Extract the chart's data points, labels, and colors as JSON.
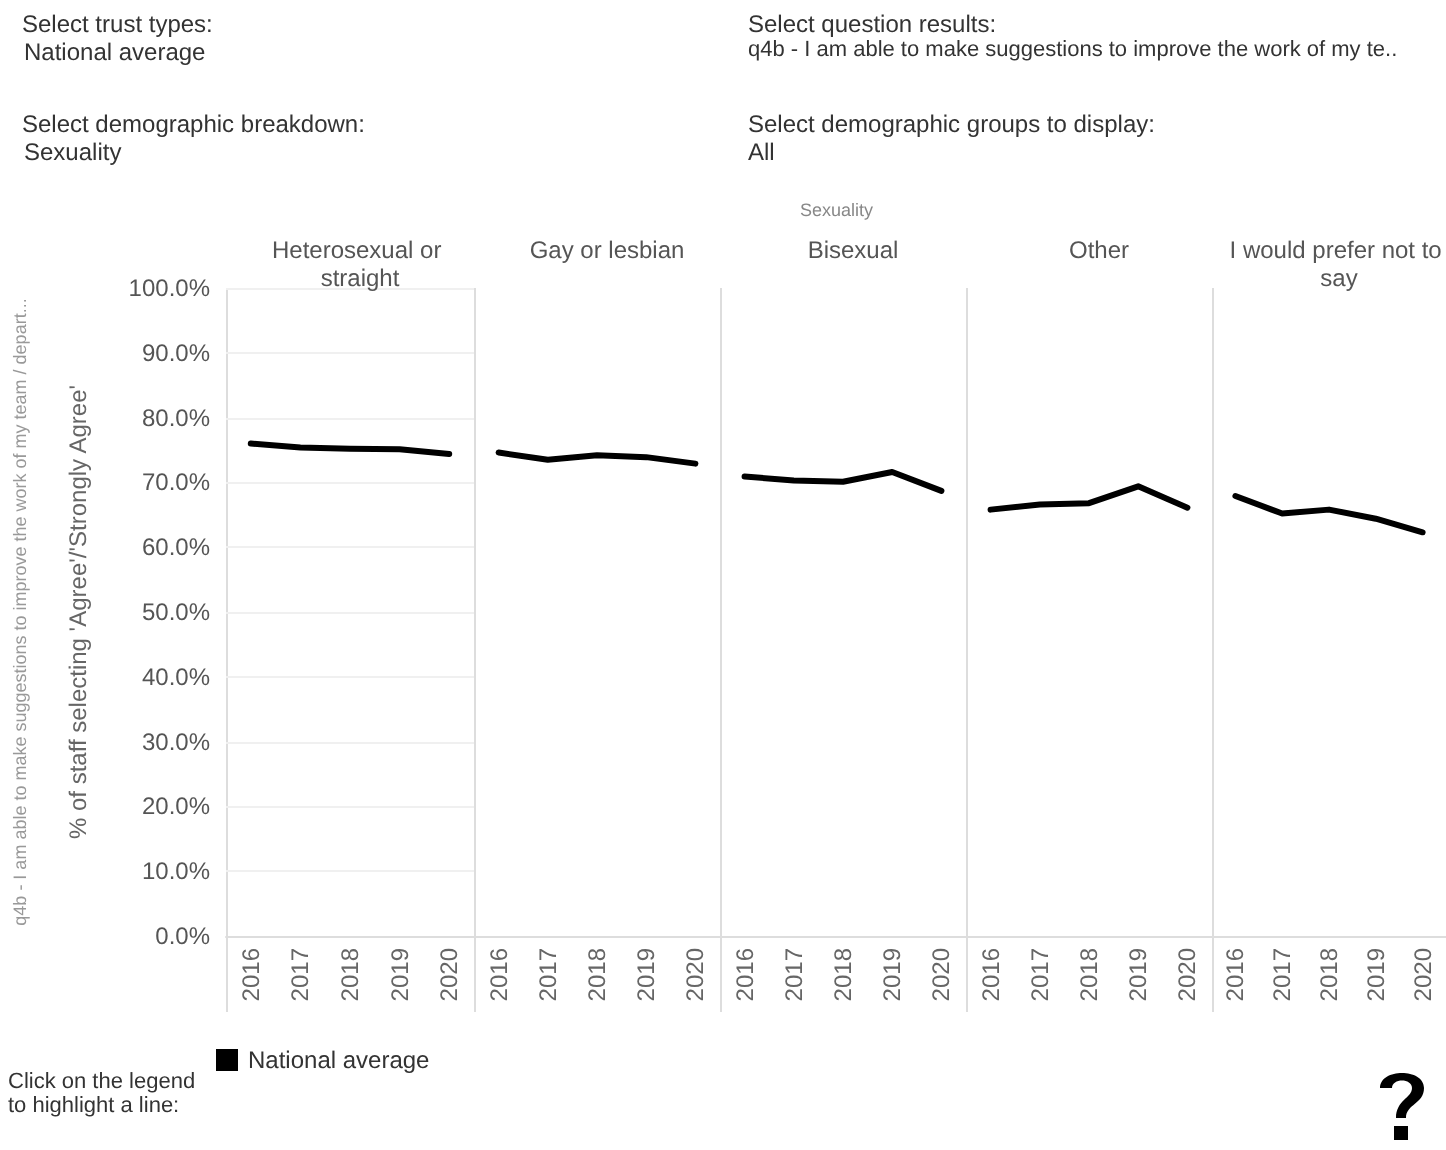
{
  "chart_data": [
    {
      "type": "line",
      "title": "Heterosexual or straight",
      "ylabel": "% of staff selecting 'Agree'/'Strongly Agree'",
      "categories": [
        "2016",
        "2017",
        "2018",
        "2019",
        "2020"
      ],
      "series": [
        {
          "name": "National average",
          "color": "#000000",
          "values": [
            76.0,
            75.4,
            75.2,
            75.1,
            74.4
          ]
        }
      ],
      "ylim": [
        0,
        100
      ],
      "yticks": [
        {
          "value": 0,
          "label": "0.0%"
        },
        {
          "value": 10,
          "label": "10.0%"
        },
        {
          "value": 20,
          "label": "20.0%"
        },
        {
          "value": 30,
          "label": "30.0%"
        },
        {
          "value": 40,
          "label": "40.0%"
        },
        {
          "value": 50,
          "label": "50.0%"
        },
        {
          "value": 60,
          "label": "60.0%"
        },
        {
          "value": 70,
          "label": "70.0%"
        },
        {
          "value": 80,
          "label": "80.0%"
        },
        {
          "value": 90,
          "label": "90.0%"
        },
        {
          "value": 100,
          "label": "100.0%"
        }
      ],
      "grid": "y",
      "legend": "bottom",
      "marker": "none",
      "line_style": "solid",
      "annotations": [
        "Select trust types:",
        "National average",
        "Select question results:",
        "q4b - I am able to make suggestions to improve the work of my te..",
        "Select demographic breakdown:",
        "Sexuality",
        "Select demographic groups to display:",
        "All",
        "Sexuality",
        "q4b - I am able to make suggestions to improve the work of my team / depart...",
        "Click on the legend to highlight a line:"
      ]
    },
    {
      "type": "line",
      "title": "Gay or lesbian",
      "categories": [
        "2016",
        "2017",
        "2018",
        "2019",
        "2020"
      ],
      "series": [
        {
          "color": "#000000",
          "values": [
            74.6,
            73.5,
            74.2,
            73.9,
            72.9
          ]
        }
      ],
      "ylim": [
        0,
        100
      ],
      "grid": "y",
      "marker": "none",
      "line_style": "solid",
      "tick_labels": "x"
    },
    {
      "type": "line",
      "title": "Bisexual",
      "categories": [
        "2016",
        "2017",
        "2018",
        "2019",
        "2020"
      ],
      "series": [
        {
          "color": "#000000",
          "values": [
            70.9,
            70.3,
            70.1,
            71.6,
            68.7
          ]
        }
      ],
      "ylim": [
        0,
        100
      ],
      "grid": "y",
      "marker": "none",
      "line_style": "solid",
      "tick_labels": "x"
    },
    {
      "type": "line",
      "title": "Other",
      "categories": [
        "2016",
        "2017",
        "2018",
        "2019",
        "2020"
      ],
      "series": [
        {
          "color": "#000000",
          "values": [
            65.8,
            66.6,
            66.8,
            69.4,
            66.1
          ]
        }
      ],
      "ylim": [
        0,
        100
      ],
      "grid": "y",
      "marker": "none",
      "line_style": "solid",
      "tick_labels": "x"
    },
    {
      "type": "line",
      "title": "I would prefer not to say",
      "categories": [
        "2016",
        "2017",
        "2018",
        "2019",
        "2020"
      ],
      "series": [
        {
          "color": "#000000",
          "values": [
            67.9,
            65.2,
            65.8,
            64.4,
            62.3
          ]
        }
      ],
      "ylim": [
        0,
        100
      ],
      "grid": "y",
      "marker": "none",
      "line_style": "solid",
      "tick_labels": "x"
    }
  ]
}
